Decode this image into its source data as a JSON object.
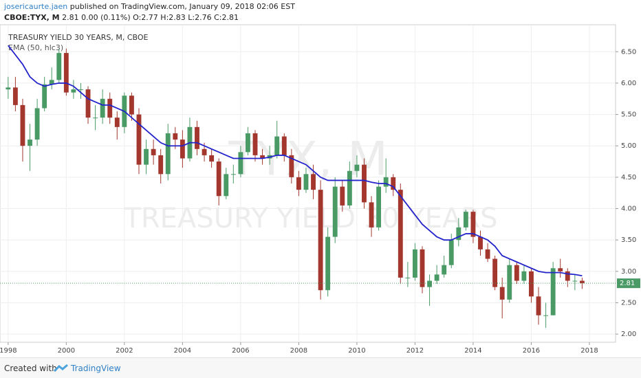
{
  "header": {
    "user": "josericaurte.jaen",
    "published": "published on TradingView.com, January 09, 2018 02:06 EST",
    "symbol": "CBOE:TYX, M",
    "quote": "2.81 0.00 (0.11%) O:2.77 H:2.83 L:2.76 C:2.81"
  },
  "footer": {
    "created": "Created with",
    "brand": "TradingView"
  },
  "chart_data": {
    "type": "candlestick",
    "title": "TREASURY YIELD 30 YEARS, M, CBOE",
    "watermark": "TYX, M",
    "watermark_subtitle": "TREASURY YIELD 30 YEARS",
    "up_color": "#4a9a66",
    "down_color": "#a3372e",
    "last_price": 2.81,
    "last_price_color": "#4a9a66",
    "xlim": [
      1997.72,
      2018.9
    ],
    "xticks": [
      1998,
      2000,
      2002,
      2004,
      2006,
      2008,
      2010,
      2012,
      2014,
      2016,
      2018
    ],
    "ylim": [
      1.87,
      6.93
    ],
    "yticks": [
      {
        "value": 2,
        "label": "2.00"
      },
      {
        "value": 2.5,
        "label": "2.50"
      },
      {
        "value": 3,
        "label": "3.00"
      },
      {
        "value": 3.5,
        "label": "3.50"
      },
      {
        "value": 4,
        "label": "4.00"
      },
      {
        "value": 4.5,
        "label": "4.50"
      },
      {
        "value": 5,
        "label": "5.00"
      },
      {
        "value": 5.5,
        "label": "5.50"
      },
      {
        "value": 6,
        "label": "6.00"
      },
      {
        "value": 6.5,
        "label": "6.50"
      }
    ],
    "grid": true,
    "x": [
      1998,
      1998.25,
      1998.5,
      1998.75,
      1999,
      1999.25,
      1999.5,
      1999.75,
      2000,
      2000.25,
      2000.5,
      2000.75,
      2001,
      2001.25,
      2001.5,
      2001.75,
      2002,
      2002.25,
      2002.5,
      2002.75,
      2003,
      2003.25,
      2003.5,
      2003.75,
      2004,
      2004.25,
      2004.5,
      2004.75,
      2005,
      2005.25,
      2005.5,
      2005.75,
      2006,
      2006.25,
      2006.5,
      2006.75,
      2007,
      2007.25,
      2007.5,
      2007.75,
      2008,
      2008.25,
      2008.5,
      2008.75,
      2009,
      2009.25,
      2009.5,
      2009.75,
      2010,
      2010.25,
      2010.5,
      2010.75,
      2011,
      2011.25,
      2011.5,
      2011.75,
      2012,
      2012.25,
      2012.5,
      2012.75,
      2013,
      2013.25,
      2013.5,
      2013.75,
      2014,
      2014.25,
      2014.5,
      2014.75,
      2015,
      2015.25,
      2015.5,
      2015.75,
      2016,
      2016.25,
      2016.5,
      2016.75,
      2017,
      2017.25,
      2017.5,
      2017.75
    ],
    "open": [
      5.9,
      5.93,
      5.65,
      5.0,
      5.1,
      5.6,
      5.98,
      6.05,
      6.48,
      5.85,
      5.9,
      5.9,
      5.45,
      5.45,
      5.75,
      5.45,
      5.3,
      5.8,
      5.5,
      4.7,
      4.95,
      4.85,
      4.55,
      5.2,
      5.1,
      4.8,
      5.3,
      4.95,
      4.85,
      4.75,
      4.2,
      4.55,
      4.55,
      4.9,
      5.2,
      4.85,
      4.8,
      4.85,
      5.15,
      4.85,
      4.5,
      4.3,
      4.55,
      4.3,
      2.7,
      3.55,
      4.35,
      4.05,
      4.6,
      4.7,
      4.1,
      3.7,
      4.35,
      4.5,
      4.3,
      2.9,
      2.9,
      3.35,
      2.75,
      2.85,
      2.95,
      3.1,
      3.5,
      3.7,
      3.95,
      3.55,
      3.35,
      3.2,
      2.75,
      2.55,
      3.1,
      2.85,
      3.0,
      2.6,
      2.3,
      2.3,
      3.05,
      3.0,
      2.85,
      2.85
    ],
    "high": [
      6.1,
      6.1,
      5.75,
      5.35,
      5.75,
      6.1,
      6.25,
      6.55,
      6.55,
      6.05,
      6.0,
      5.95,
      5.65,
      5.9,
      5.85,
      5.55,
      5.85,
      5.85,
      5.6,
      5.1,
      5.1,
      4.95,
      5.35,
      5.3,
      5.25,
      5.45,
      5.4,
      5.05,
      4.95,
      4.8,
      4.65,
      4.7,
      5.0,
      5.3,
      5.25,
      4.95,
      5.0,
      5.4,
      5.2,
      4.95,
      4.6,
      4.65,
      4.7,
      4.45,
      3.7,
      4.5,
      4.45,
      4.75,
      4.85,
      4.8,
      4.2,
      4.45,
      4.8,
      4.55,
      4.4,
      3.15,
      3.45,
      3.4,
      2.95,
      3.1,
      3.25,
      3.6,
      3.85,
      3.98,
      3.98,
      3.65,
      3.45,
      3.25,
      2.9,
      3.2,
      3.15,
      3.1,
      3.05,
      2.75,
      2.5,
      3.15,
      3.2,
      3.05,
      2.95,
      2.9
    ],
    "low": [
      5.75,
      5.55,
      4.75,
      4.6,
      5.0,
      5.55,
      5.9,
      6.0,
      5.8,
      5.75,
      5.75,
      5.35,
      5.25,
      5.35,
      5.35,
      5.1,
      5.2,
      5.4,
      4.55,
      4.55,
      4.7,
      4.4,
      4.45,
      4.95,
      4.65,
      4.75,
      4.85,
      4.75,
      4.65,
      4.05,
      4.15,
      4.4,
      4.5,
      4.85,
      4.75,
      4.7,
      4.7,
      4.8,
      4.75,
      4.4,
      4.2,
      4.25,
      4.15,
      2.55,
      2.6,
      3.45,
      3.95,
      4.0,
      4.5,
      4.0,
      3.55,
      3.65,
      4.25,
      4.2,
      2.8,
      2.75,
      2.85,
      2.65,
      2.45,
      2.8,
      2.9,
      3.05,
      3.4,
      3.65,
      3.45,
      3.25,
      3.15,
      2.7,
      2.25,
      2.5,
      2.8,
      2.8,
      2.5,
      2.15,
      2.1,
      2.3,
      2.9,
      2.75,
      2.7,
      2.72
    ],
    "close": [
      5.93,
      5.65,
      5.0,
      5.1,
      5.6,
      5.98,
      6.05,
      6.48,
      5.85,
      5.9,
      5.9,
      5.45,
      5.45,
      5.75,
      5.45,
      5.3,
      5.8,
      5.5,
      4.7,
      4.95,
      4.85,
      4.55,
      5.2,
      5.1,
      4.8,
      5.3,
      4.95,
      4.85,
      4.75,
      4.2,
      4.55,
      4.55,
      4.9,
      5.2,
      4.85,
      4.8,
      4.85,
      5.15,
      4.85,
      4.5,
      4.3,
      4.55,
      4.3,
      2.7,
      3.55,
      4.35,
      4.05,
      4.6,
      4.7,
      4.1,
      3.7,
      4.35,
      4.5,
      4.3,
      2.9,
      2.9,
      3.35,
      2.75,
      2.85,
      2.95,
      3.1,
      3.5,
      3.7,
      3.95,
      3.55,
      3.35,
      3.2,
      2.75,
      2.55,
      3.1,
      2.85,
      3.0,
      2.6,
      2.3,
      2.3,
      3.05,
      3.0,
      2.85,
      2.85,
      2.81
    ],
    "series": [
      {
        "name": "EMA (50, hlc3)",
        "color": "#2323cc",
        "values": [
          6.6,
          6.45,
          6.3,
          6.1,
          6.0,
          5.95,
          5.98,
          6.0,
          6.0,
          5.95,
          5.85,
          5.75,
          5.7,
          5.65,
          5.65,
          5.6,
          5.55,
          5.45,
          5.35,
          5.25,
          5.15,
          5.05,
          5.0,
          5.0,
          5.0,
          5.05,
          5.05,
          5.0,
          4.95,
          4.9,
          4.85,
          4.8,
          4.8,
          4.8,
          4.8,
          4.8,
          4.82,
          4.85,
          4.85,
          4.8,
          4.75,
          4.7,
          4.6,
          4.5,
          4.45,
          4.45,
          4.45,
          4.45,
          4.45,
          4.45,
          4.42,
          4.4,
          4.4,
          4.35,
          4.2,
          4.05,
          3.9,
          3.75,
          3.65,
          3.55,
          3.5,
          3.5,
          3.55,
          3.6,
          3.6,
          3.55,
          3.5,
          3.4,
          3.25,
          3.2,
          3.15,
          3.1,
          3.05,
          3.0,
          2.98,
          2.98,
          2.98,
          2.96,
          2.95,
          2.93
        ]
      }
    ]
  }
}
